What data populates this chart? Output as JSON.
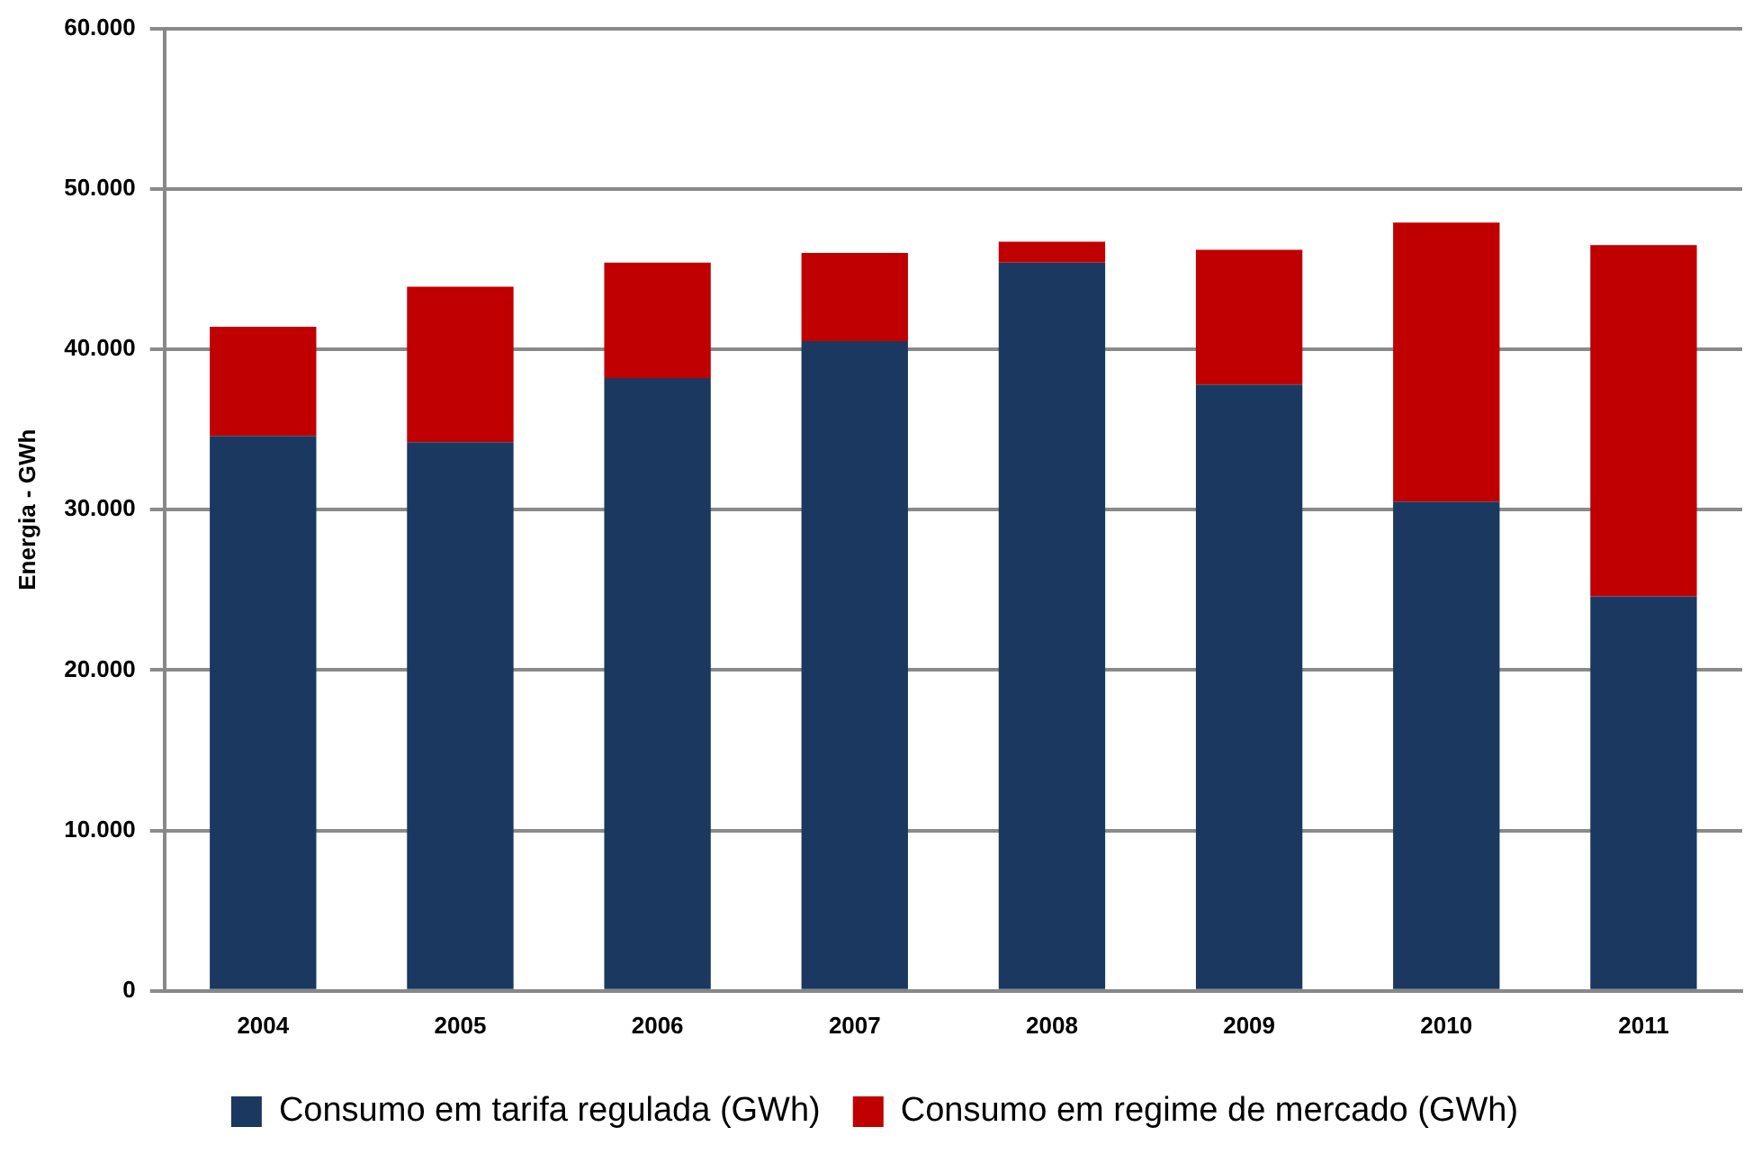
{
  "chart_data": {
    "type": "bar",
    "stacked": true,
    "ylabel": "Energia - GWh",
    "categories": [
      "2004",
      "2005",
      "2006",
      "2007",
      "2008",
      "2009",
      "2010",
      "2011"
    ],
    "series": [
      {
        "name": "Consumo em tarifa regulada (GWh)",
        "color": "#1a3860",
        "values": [
          34600,
          34200,
          38200,
          40500,
          45400,
          37800,
          30500,
          24600
        ]
      },
      {
        "name": "Consumo em regime de mercado (GWh)",
        "color": "#c00000",
        "values": [
          6800,
          9700,
          7200,
          5500,
          1300,
          8400,
          17400,
          21900
        ]
      }
    ],
    "ylim": [
      0,
      60000
    ],
    "yticks": [
      {
        "value": 0,
        "label": "0"
      },
      {
        "value": 10000,
        "label": "10.000"
      },
      {
        "value": 20000,
        "label": "20.000"
      },
      {
        "value": 30000,
        "label": "30.000"
      },
      {
        "value": 40000,
        "label": "40.000"
      },
      {
        "value": 50000,
        "label": "50.000"
      },
      {
        "value": 60000,
        "label": "60.000"
      }
    ],
    "grid": "y",
    "legend": "bottom"
  }
}
